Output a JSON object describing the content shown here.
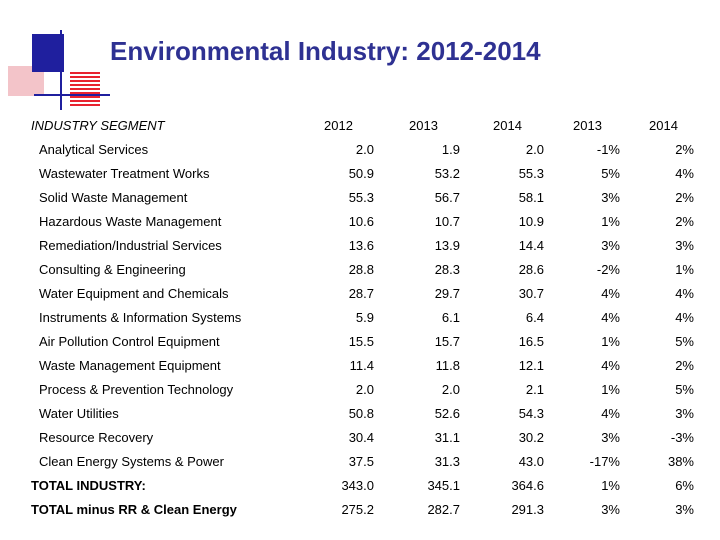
{
  "title": "Environmental Industry: 2012-2014",
  "table": {
    "headers": {
      "segment": "INDUSTRY SEGMENT",
      "y2012": "2012",
      "y2013": "2013",
      "y2014": "2014",
      "g2013": "2013",
      "g2014": "2014"
    },
    "rows": [
      {
        "segment": "Analytical Services",
        "y2012": "2.0",
        "y2013": "1.9",
        "y2014": "2.0",
        "g2013": "-1%",
        "g2014": "2%"
      },
      {
        "segment": "Wastewater Treatment Works",
        "y2012": "50.9",
        "y2013": "53.2",
        "y2014": "55.3",
        "g2013": "5%",
        "g2014": "4%"
      },
      {
        "segment": "Solid Waste Management",
        "y2012": "55.3",
        "y2013": "56.7",
        "y2014": "58.1",
        "g2013": "3%",
        "g2014": "2%"
      },
      {
        "segment": "Hazardous Waste Management",
        "y2012": "10.6",
        "y2013": "10.7",
        "y2014": "10.9",
        "g2013": "1%",
        "g2014": "2%"
      },
      {
        "segment": "Remediation/Industrial Services",
        "y2012": "13.6",
        "y2013": "13.9",
        "y2014": "14.4",
        "g2013": "3%",
        "g2014": "3%"
      },
      {
        "segment": "Consulting & Engineering",
        "y2012": "28.8",
        "y2013": "28.3",
        "y2014": "28.6",
        "g2013": "-2%",
        "g2014": "1%"
      },
      {
        "segment": "Water Equipment and Chemicals",
        "y2012": "28.7",
        "y2013": "29.7",
        "y2014": "30.7",
        "g2013": "4%",
        "g2014": "4%"
      },
      {
        "segment": "Instruments & Information Systems",
        "y2012": "5.9",
        "y2013": "6.1",
        "y2014": "6.4",
        "g2013": "4%",
        "g2014": "4%"
      },
      {
        "segment": "Air Pollution Control Equipment",
        "y2012": "15.5",
        "y2013": "15.7",
        "y2014": "16.5",
        "g2013": "1%",
        "g2014": "5%"
      },
      {
        "segment": "Waste Management Equipment",
        "y2012": "11.4",
        "y2013": "11.8",
        "y2014": "12.1",
        "g2013": "4%",
        "g2014": "2%"
      },
      {
        "segment": "Process & Prevention Technology",
        "y2012": "2.0",
        "y2013": "2.0",
        "y2014": "2.1",
        "g2013": "1%",
        "g2014": "5%"
      },
      {
        "segment": "Water Utilities",
        "y2012": "50.8",
        "y2013": "52.6",
        "y2014": "54.3",
        "g2013": "4%",
        "g2014": "3%"
      },
      {
        "segment": "Resource Recovery",
        "y2012": "30.4",
        "y2013": "31.1",
        "y2014": "30.2",
        "g2013": "3%",
        "g2014": "-3%"
      },
      {
        "segment": "Clean Energy Systems & Power",
        "y2012": "37.5",
        "y2013": "31.3",
        "y2014": "43.0",
        "g2013": "-17%",
        "g2014": "38%"
      },
      {
        "segment": "TOTAL INDUSTRY:",
        "y2012": "343.0",
        "y2013": "345.1",
        "y2014": "364.6",
        "g2013": "1%",
        "g2014": "6%",
        "total": true
      },
      {
        "segment": "TOTAL minus RR & Clean Energy",
        "y2012": "275.2",
        "y2013": "282.7",
        "y2014": "291.3",
        "g2013": "3%",
        "g2014": "3%",
        "total": true
      }
    ]
  },
  "colors": {
    "title": "#2e3192",
    "logo_blue": "#1f1f9e",
    "logo_red": "#e8232f",
    "logo_pink": "#f3c4c9"
  }
}
